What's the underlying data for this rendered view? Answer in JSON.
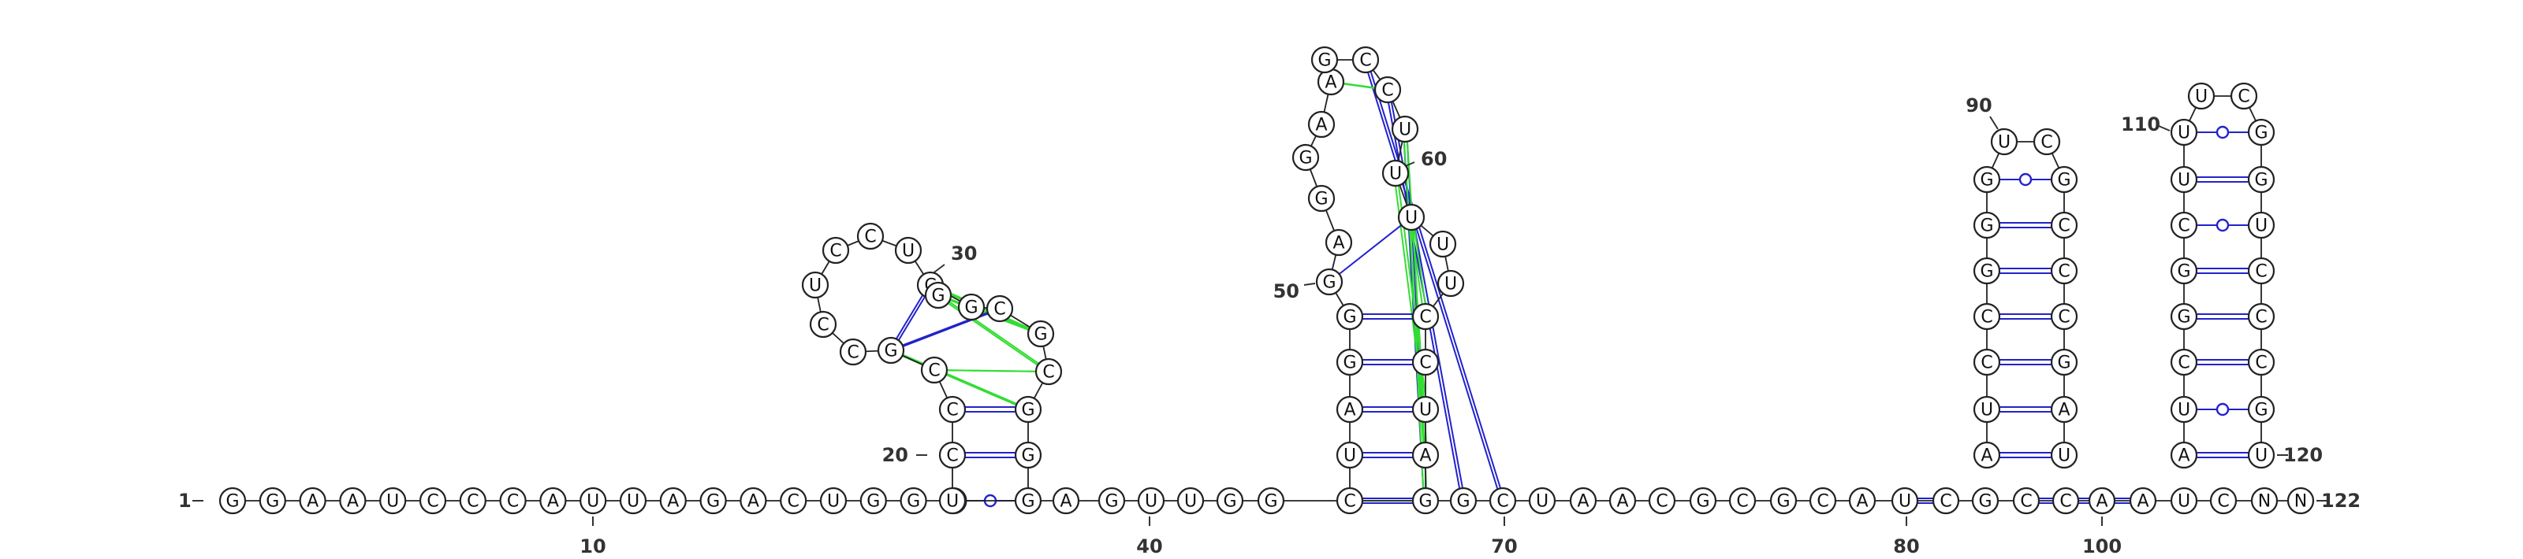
{
  "diagram_type": "rna-secondary-structure",
  "sequence_length": 122,
  "colors": {
    "canonical_pair": "#2222cc",
    "wobble_pair": "#2222cc",
    "tertiary_interaction": "#33dd33",
    "backbone": "#222222"
  },
  "nucleotides": {
    "baseline": "GGAAUCCCAUUAGACUGGGUGAGUUGGCGGCUAACGCGCAUCGCCAAUC",
    "hairpin1_stem_left": "CCCG",
    "hairpin1_stem_right": "GGCG",
    "hairpin1_loop": "CCUCCUCG",
    "hairpin1_pseudoknot_strand": "CGG",
    "hairpin2_stem_left": "UAGG",
    "hairpin2_stem_right": "AUCC",
    "hairpin2_interior": "GAGGAAGC",
    "hairpin2_3prime_strand": "CUUU",
    "hairpin3_stem_left": "AUCCGGGU",
    "hairpin3_stem_right": "UAGCCCG",
    "hairpin3_loop": "UC",
    "hairpin4_stem_left": "AUCGGCU",
    "hairpin4_stem_right": "UGCCCUGG",
    "hairpin4_loop": "UC"
  },
  "position_labels": [
    "1",
    "10",
    "20",
    "30",
    "40",
    "50",
    "60",
    "70",
    "80",
    "90",
    "100",
    "110",
    "120",
    "122"
  ]
}
